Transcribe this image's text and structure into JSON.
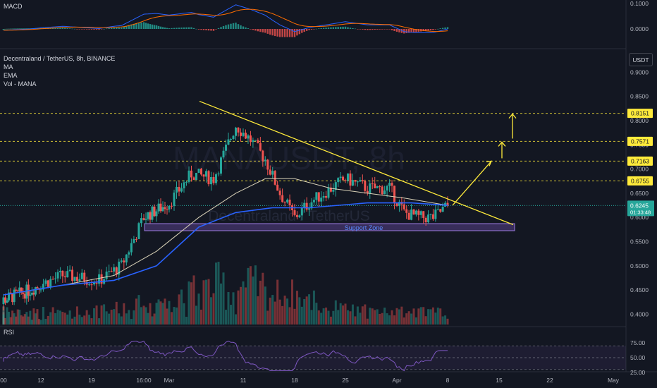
{
  "macd_label": "MACD",
  "rsi_label": "RSI",
  "symbol_title": "Decentraland / TetherUS, 8h, BINANCE",
  "indicators": [
    "MA",
    "EMA",
    "Vol - MANA"
  ],
  "watermark_ticker": "MANAUSDT, 8h",
  "watermark_name": "Decentraland / TetherUS",
  "currency_button": "USDT",
  "support_zone_label": "Support Zone",
  "price_axis_ticks": [
    "0.9000",
    "0.8500",
    "0.8000",
    "0.7500",
    "0.7000",
    "0.6500",
    "0.6000",
    "0.5500",
    "0.5000",
    "0.4500",
    "0.4000"
  ],
  "macd_axis_ticks": [
    "0.1000",
    "0.0000"
  ],
  "rsi_axis_ticks": [
    "75.00",
    "50.00",
    "25.00"
  ],
  "time_axis_ticks": [
    "00",
    "12",
    "19",
    "16:00",
    "Mar",
    "11",
    "18",
    "25",
    "Apr",
    "8",
    "15",
    "22",
    "May"
  ],
  "current_price": "0.6245",
  "countdown": "01:33:48",
  "targets": [
    "0.8151",
    "0.7571",
    "0.7163",
    "0.6755"
  ],
  "colors": {
    "background": "#131722",
    "up": "#26a69a",
    "down": "#ef5350",
    "ma": "#d9d2b8",
    "ema": "#2962ff",
    "trendline": "#ffeb3b",
    "support_zone": "#7e57c2",
    "rsi": "#7e57c2"
  },
  "chart_data": {
    "type": "candlestick",
    "title": "Decentraland / TetherUS, 8h, BINANCE",
    "ylim": [
      0.38,
      0.92
    ],
    "y_scale": "linear",
    "x_range": [
      "Feb 5",
      "May 1"
    ],
    "grid": false,
    "price_path": [
      {
        "x": "Feb 5",
        "y": 0.43
      },
      {
        "x": "Feb 10",
        "y": 0.45
      },
      {
        "x": "Feb 15",
        "y": 0.48
      },
      {
        "x": "Feb 20",
        "y": 0.47
      },
      {
        "x": "Feb 23",
        "y": 0.5
      },
      {
        "x": "Feb 26",
        "y": 0.6
      },
      {
        "x": "Mar 1",
        "y": 0.63
      },
      {
        "x": "Mar 4",
        "y": 0.69
      },
      {
        "x": "Mar 7",
        "y": 0.68
      },
      {
        "x": "Mar 10",
        "y": 0.79
      },
      {
        "x": "Mar 12",
        "y": 0.76
      },
      {
        "x": "Mar 14",
        "y": 0.72
      },
      {
        "x": "Mar 16",
        "y": 0.65
      },
      {
        "x": "Mar 18",
        "y": 0.6
      },
      {
        "x": "Mar 20",
        "y": 0.63
      },
      {
        "x": "Mar 22",
        "y": 0.65
      },
      {
        "x": "Mar 25",
        "y": 0.68
      },
      {
        "x": "Mar 28",
        "y": 0.66
      },
      {
        "x": "Mar 31",
        "y": 0.66
      },
      {
        "x": "Apr 2",
        "y": 0.61
      },
      {
        "x": "Apr 4",
        "y": 0.6
      },
      {
        "x": "Apr 6",
        "y": 0.6
      },
      {
        "x": "Apr 8",
        "y": 0.6245
      }
    ],
    "ma_path": [
      {
        "x": "Feb 5",
        "y": 0.44
      },
      {
        "x": "Feb 15",
        "y": 0.46
      },
      {
        "x": "Feb 22",
        "y": 0.48
      },
      {
        "x": "Feb 28",
        "y": 0.53
      },
      {
        "x": "Mar 5",
        "y": 0.6
      },
      {
        "x": "Mar 10",
        "y": 0.65
      },
      {
        "x": "Mar 14",
        "y": 0.68
      },
      {
        "x": "Mar 18",
        "y": 0.68
      },
      {
        "x": "Mar 23",
        "y": 0.66
      },
      {
        "x": "Mar 28",
        "y": 0.65
      },
      {
        "x": "Apr 2",
        "y": 0.64
      },
      {
        "x": "Apr 8",
        "y": 0.625
      }
    ],
    "ema_path": [
      {
        "x": "Feb 5",
        "y": 0.44
      },
      {
        "x": "Feb 15",
        "y": 0.46
      },
      {
        "x": "Feb 22",
        "y": 0.47
      },
      {
        "x": "Feb 28",
        "y": 0.5
      },
      {
        "x": "Mar 5",
        "y": 0.58
      },
      {
        "x": "Mar 10",
        "y": 0.61
      },
      {
        "x": "Mar 15",
        "y": 0.62
      },
      {
        "x": "Mar 20",
        "y": 0.62
      },
      {
        "x": "Mar 28",
        "y": 0.63
      },
      {
        "x": "Apr 3",
        "y": 0.63
      },
      {
        "x": "Apr 8",
        "y": 0.625
      }
    ],
    "trendline": [
      {
        "x": "Mar 6",
        "y": 0.84
      },
      {
        "x": "Apr 14",
        "y": 0.585
      }
    ],
    "support_zone": {
      "x_start": "Feb 28",
      "x_end": "Apr 14",
      "y_low": 0.573,
      "y_high": 0.585
    },
    "projection_path": [
      {
        "x": "Apr 8",
        "y": 0.625
      },
      {
        "x": "Apr 11",
        "y": 0.7163
      },
      {
        "x": "Apr 13",
        "y": 0.7163
      },
      {
        "x": "Apr 13",
        "y": 0.7571
      },
      {
        "x": "Apr 15",
        "y": 0.7571
      },
      {
        "x": "Apr 15",
        "y": 0.8151
      }
    ],
    "levels": [
      0.8151,
      0.7571,
      0.7163,
      0.6755
    ],
    "last_price": 0.6245
  }
}
